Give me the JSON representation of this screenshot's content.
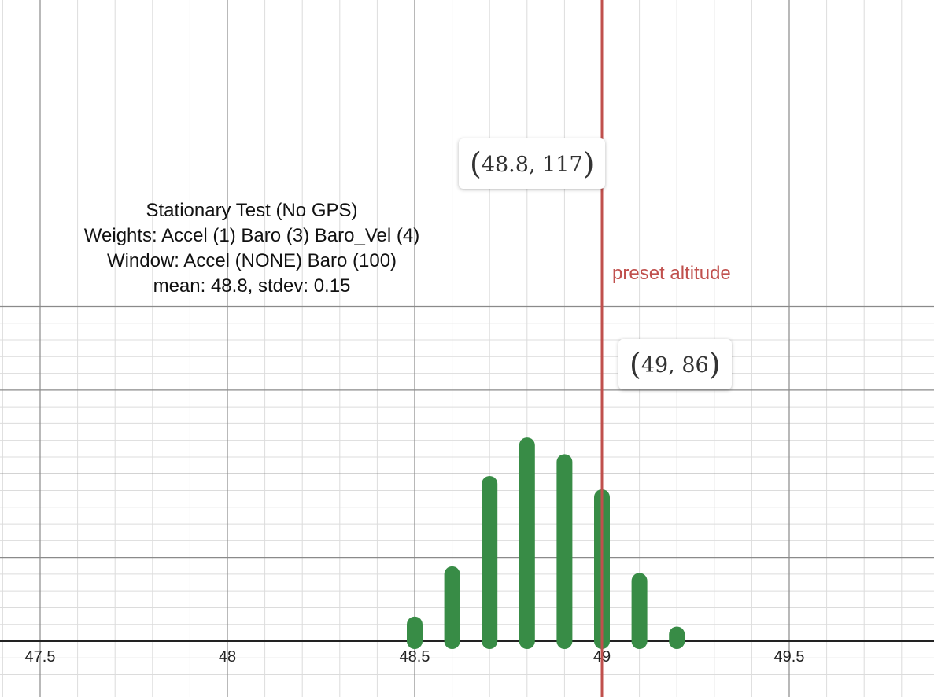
{
  "chart_data": {
    "type": "bar",
    "x": [
      48.5,
      48.6,
      48.7,
      48.8,
      48.9,
      49.0,
      49.1,
      49.2
    ],
    "values": [
      10,
      40,
      94,
      117,
      107,
      86,
      36,
      4
    ],
    "xlim": [
      47.4,
      49.75
    ],
    "ylim": [
      0,
      140
    ],
    "x_ticks": [
      "47.5",
      "48",
      "48.5",
      "49",
      "49.5"
    ],
    "x_tick_values": [
      47.5,
      48.0,
      48.5,
      49.0,
      49.5
    ],
    "grid": true,
    "bar_color": "#388c46",
    "annotation_lines": [
      "Stationary Test (No GPS)",
      "Weights: Accel (1) Baro (3) Baro_Vel (4)",
      "Window: Accel (NONE) Baro (100)",
      "mean: 48.8, stdev: 0.15"
    ],
    "reference_line": {
      "x": 49.0,
      "label": "preset altitude",
      "color": "#c0504d"
    },
    "point_labels": [
      {
        "x": 48.8,
        "y": 117,
        "text": "48.8, 117"
      },
      {
        "x": 49.0,
        "y": 86,
        "text": "49, 86"
      }
    ]
  }
}
